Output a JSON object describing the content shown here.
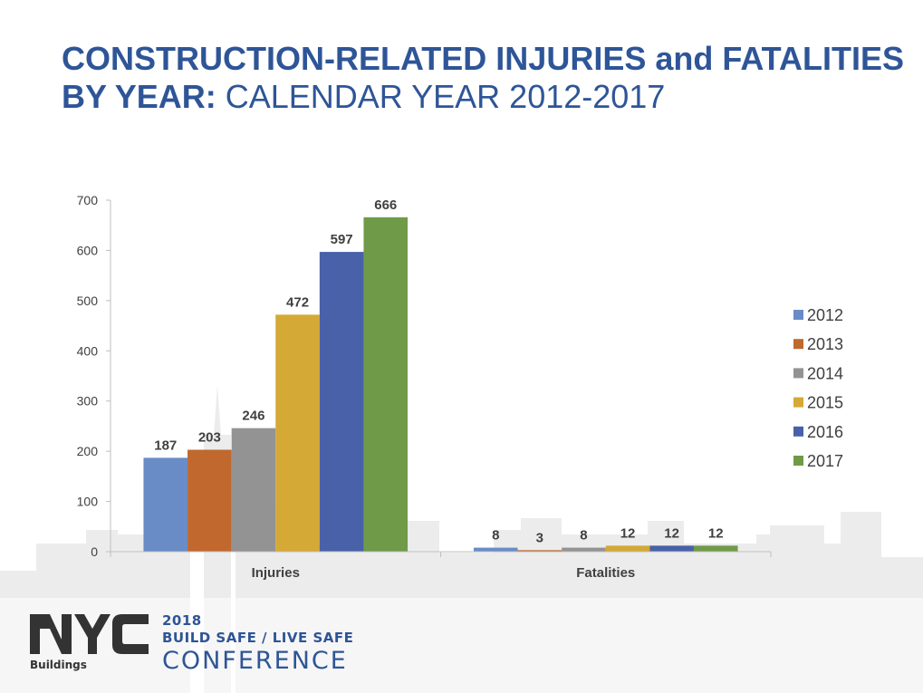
{
  "title": {
    "bold": "CONSTRUCTION-RELATED INJURIES and FATALITIES BY YEAR:",
    "normal": "CALENDAR YEAR 2012-2017"
  },
  "footer": {
    "logo_text": "NYC",
    "logo_subtext": "Buildings",
    "conference_year": "2018",
    "conference_tagline": "BUILD SAFE / LIVE SAFE",
    "conference_name": "CONFERENCE"
  },
  "colors": {
    "title": "#2e5597",
    "series": [
      "#6a8cc6",
      "#c0682e",
      "#939393",
      "#d4a935",
      "#4861a8",
      "#6f9a48"
    ]
  },
  "chart_data": {
    "type": "bar",
    "categories": [
      "Injuries",
      "Fatalities"
    ],
    "series": [
      {
        "name": "2012",
        "values": [
          187,
          8
        ]
      },
      {
        "name": "2013",
        "values": [
          203,
          3
        ]
      },
      {
        "name": "2014",
        "values": [
          246,
          8
        ]
      },
      {
        "name": "2015",
        "values": [
          472,
          12
        ]
      },
      {
        "name": "2016",
        "values": [
          597,
          12
        ]
      },
      {
        "name": "2017",
        "values": [
          666,
          12
        ]
      }
    ],
    "ylim": [
      0,
      700
    ],
    "yticks": [
      0,
      100,
      200,
      300,
      400,
      500,
      600,
      700
    ],
    "data_labels": true,
    "grid": false,
    "legend": "right"
  }
}
